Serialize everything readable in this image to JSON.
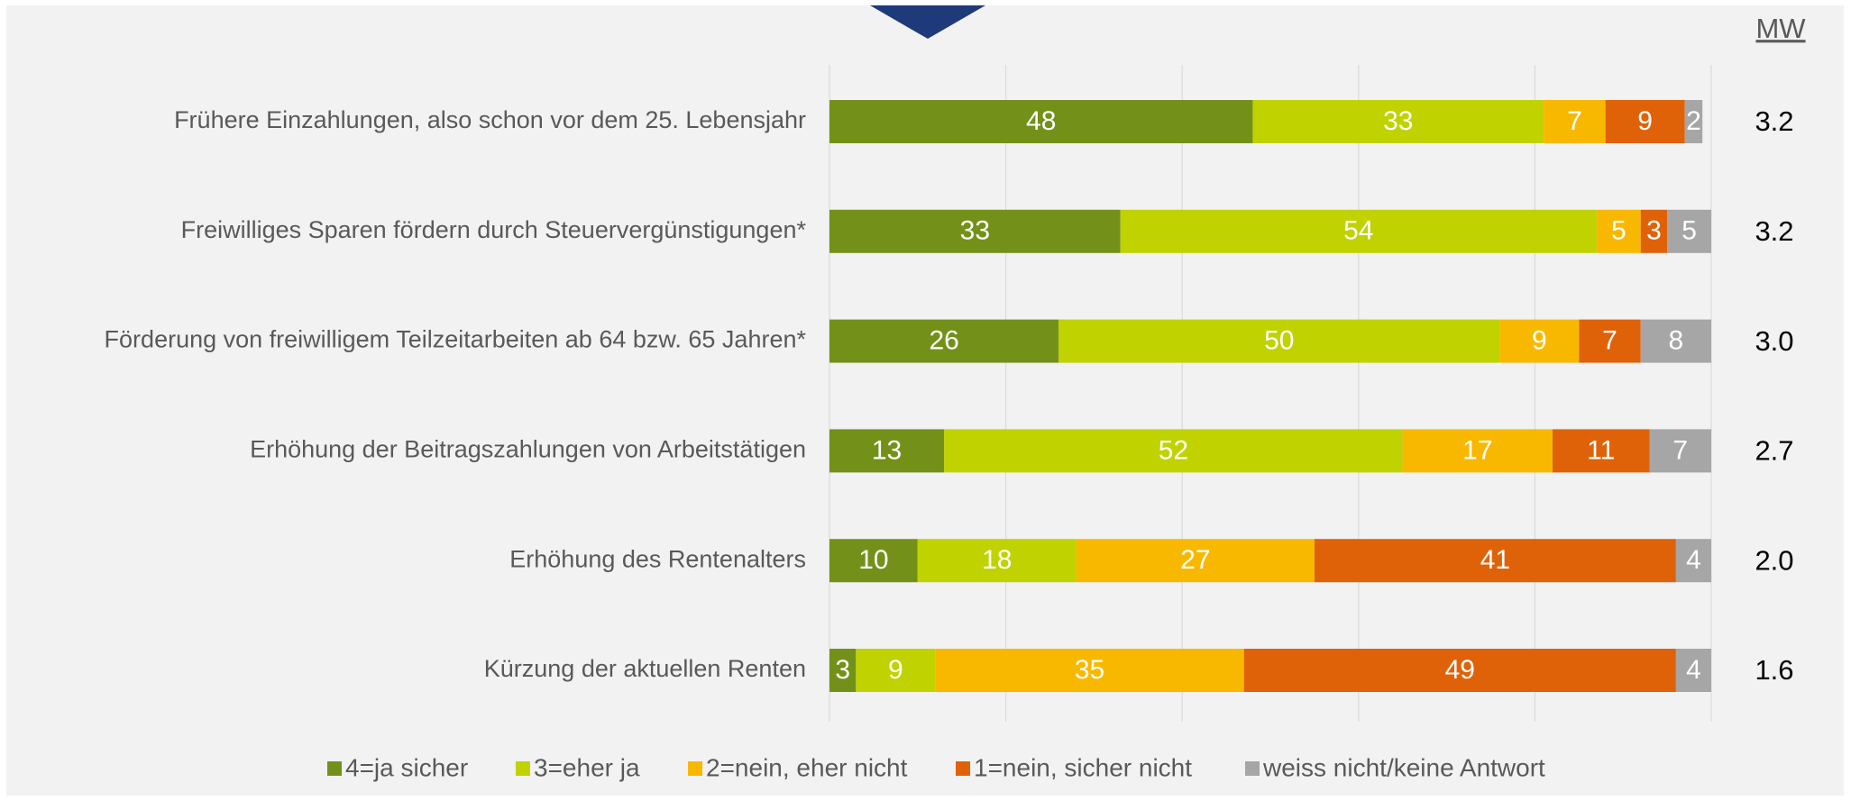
{
  "chart_data": {
    "type": "stacked-barh",
    "categories": [
      "Frühere Einzahlungen, also schon vor dem 25. Lebensjahr",
      "Freiwilliges Sparen fördern durch Steuervergünstigungen*",
      "Förderung von freiwilligem Teilzeitarbeiten ab 64 bzw. 65 Jahren*",
      "Erhöhung der Beitragszahlungen von Arbeitstätigen",
      "Erhöhung des Rentenalters",
      "Kürzung der aktuellen Renten"
    ],
    "series": [
      {
        "name": "4=ja sicher",
        "color": "#739119",
        "values": [
          48,
          33,
          26,
          13,
          10,
          3
        ]
      },
      {
        "name": "3=eher ja",
        "color": "#c0d200",
        "values": [
          33,
          54,
          50,
          52,
          18,
          9
        ]
      },
      {
        "name": "2=nein, eher nicht",
        "color": "#f9b800",
        "values": [
          7,
          5,
          9,
          17,
          27,
          35
        ]
      },
      {
        "name": "1=nein, sicher nicht",
        "color": "#e06208",
        "values": [
          9,
          3,
          7,
          11,
          41,
          49
        ]
      },
      {
        "name": "weiss nicht/keine Antwort",
        "color": "#a6a6a6",
        "values": [
          2,
          5,
          8,
          7,
          4,
          4
        ]
      }
    ],
    "mean_header": "MW",
    "means": [
      3.2,
      3.2,
      3.0,
      2.7,
      2.0,
      1.6
    ],
    "mean_labels": [
      "3.2",
      "3.2",
      "3.0",
      "2.7",
      "2.0",
      "1.6"
    ],
    "xlim": [
      0,
      100
    ],
    "xticks": [
      0,
      20,
      40,
      60,
      80,
      100
    ],
    "show_tick_labels": false,
    "grid": true,
    "legend": "bottom"
  }
}
